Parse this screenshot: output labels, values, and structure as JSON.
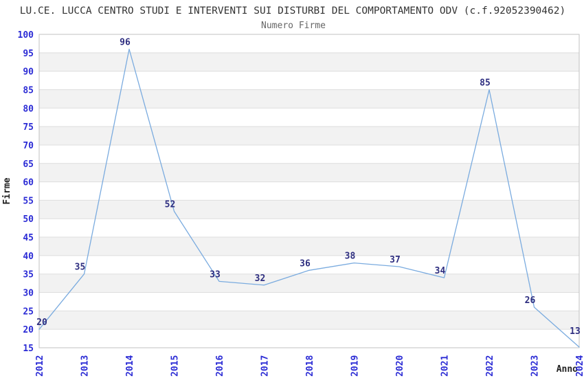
{
  "chart_data": {
    "type": "line",
    "title": "LU.CE. LUCCA CENTRO STUDI E INTERVENTI SUI DISTURBI DEL COMPORTAMENTO ODV (c.f.92052390462)",
    "subtitle": "Numero Firme",
    "xlabel": "Anno",
    "ylabel": "Firme",
    "categories": [
      "2012",
      "2013",
      "2014",
      "2015",
      "2016",
      "2017",
      "2018",
      "2019",
      "2020",
      "2021",
      "2022",
      "2023",
      "2024"
    ],
    "series": [
      {
        "name": "Numero Firme",
        "values": [
          20,
          35,
          96,
          52,
          33,
          32,
          36,
          38,
          37,
          34,
          85,
          26,
          13
        ]
      }
    ],
    "ylim": [
      15,
      100
    ],
    "ytick_step": 5,
    "ytick_labels": [
      "15",
      "20",
      "25",
      "30",
      "35",
      "40",
      "45",
      "50",
      "55",
      "60",
      "65",
      "70",
      "75",
      "80",
      "85",
      "90",
      "95",
      "100"
    ],
    "grid": "horizontal-only",
    "banding": "alternating gray bands every 5 units",
    "legend": "none",
    "colors": {
      "line": "#7aabdf",
      "tick_label_blue": "#2b2bd5",
      "point_label_navy": "#2e2e80",
      "band_gray": "#f2f2f2",
      "gridline": "#dddddd",
      "plot_border": "#c0c0c0",
      "title": "#333333",
      "subtitle": "#666666",
      "axis_name": "#222222",
      "background": "#ffffff"
    }
  }
}
